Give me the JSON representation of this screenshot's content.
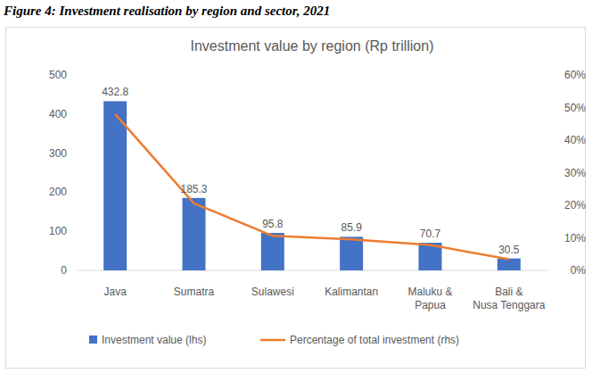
{
  "caption": "Figure 4: Investment realisation by region and sector, 2021",
  "chart_data": {
    "type": "bar",
    "title": "Investment value by region (Rp trillion)",
    "categories": [
      "Java",
      "Sumatra",
      "Sulawesi",
      "Kalimantan",
      "Maluku & Papua",
      "Bali & Nusa Tenggara"
    ],
    "series": [
      {
        "name": "Investment value (lhs)",
        "type": "bar",
        "color": "#4472c4",
        "data_labels": true,
        "values": [
          432.8,
          185.3,
          95.8,
          85.9,
          70.7,
          30.5
        ]
      },
      {
        "name": "Percentage of total investment (rhs)",
        "type": "line",
        "color": "#ed7d31",
        "axis": "y2",
        "values": [
          48.0,
          20.6,
          10.6,
          9.5,
          7.8,
          3.4
        ]
      }
    ],
    "ylim": [
      0,
      500
    ],
    "yticks": [
      0,
      100,
      200,
      300,
      400,
      500
    ],
    "y2lim": [
      0,
      60
    ],
    "y2ticks": [
      {
        "value": 0,
        "label": "0%"
      },
      {
        "value": 10,
        "label": "10%"
      },
      {
        "value": 20,
        "label": "20%"
      },
      {
        "value": 30,
        "label": "30%"
      },
      {
        "value": 40,
        "label": "40%"
      },
      {
        "value": 50,
        "label": "50%"
      },
      {
        "value": 60,
        "label": "60%"
      }
    ],
    "grid": false,
    "legend": "bottom"
  }
}
